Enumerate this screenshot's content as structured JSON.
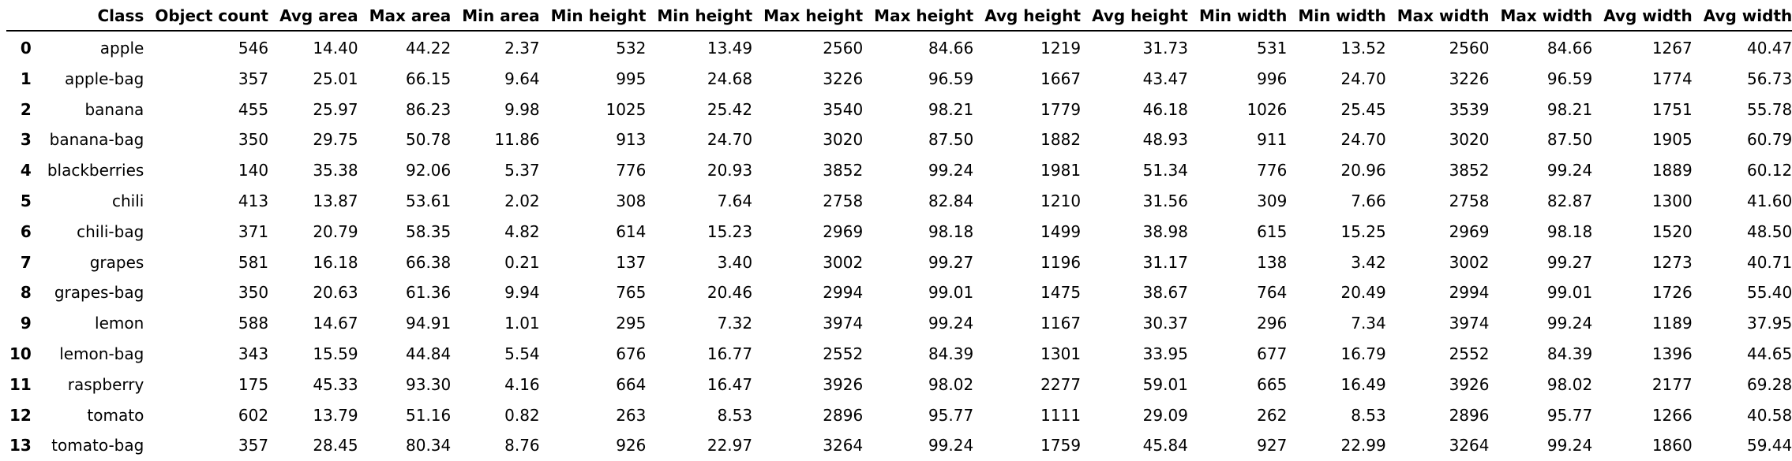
{
  "table": {
    "columns": [
      "Class",
      "Object count",
      "Avg area",
      "Max area",
      "Min area",
      "Min height",
      "Min height",
      "Max height",
      "Max height",
      "Avg height",
      "Avg height",
      "Min width",
      "Min width",
      "Max width",
      "Max width",
      "Avg width",
      "Avg width"
    ],
    "rows": [
      {
        "index": "0",
        "cells": [
          "apple",
          "546",
          "14.40",
          "44.22",
          "2.37",
          "532",
          "13.49",
          "2560",
          "84.66",
          "1219",
          "31.73",
          "531",
          "13.52",
          "2560",
          "84.66",
          "1267",
          "40.47"
        ]
      },
      {
        "index": "1",
        "cells": [
          "apple-bag",
          "357",
          "25.01",
          "66.15",
          "9.64",
          "995",
          "24.68",
          "3226",
          "96.59",
          "1667",
          "43.47",
          "996",
          "24.70",
          "3226",
          "96.59",
          "1774",
          "56.73"
        ]
      },
      {
        "index": "2",
        "cells": [
          "banana",
          "455",
          "25.97",
          "86.23",
          "9.98",
          "1025",
          "25.42",
          "3540",
          "98.21",
          "1779",
          "46.18",
          "1026",
          "25.45",
          "3539",
          "98.21",
          "1751",
          "55.78"
        ]
      },
      {
        "index": "3",
        "cells": [
          "banana-bag",
          "350",
          "29.75",
          "50.78",
          "11.86",
          "913",
          "24.70",
          "3020",
          "87.50",
          "1882",
          "48.93",
          "911",
          "24.70",
          "3020",
          "87.50",
          "1905",
          "60.79"
        ]
      },
      {
        "index": "4",
        "cells": [
          "blackberries",
          "140",
          "35.38",
          "92.06",
          "5.37",
          "776",
          "20.93",
          "3852",
          "99.24",
          "1981",
          "51.34",
          "776",
          "20.96",
          "3852",
          "99.24",
          "1889",
          "60.12"
        ]
      },
      {
        "index": "5",
        "cells": [
          "chili",
          "413",
          "13.87",
          "53.61",
          "2.02",
          "308",
          "7.64",
          "2758",
          "82.84",
          "1210",
          "31.56",
          "309",
          "7.66",
          "2758",
          "82.87",
          "1300",
          "41.60"
        ]
      },
      {
        "index": "6",
        "cells": [
          "chili-bag",
          "371",
          "20.79",
          "58.35",
          "4.82",
          "614",
          "15.23",
          "2969",
          "98.18",
          "1499",
          "38.98",
          "615",
          "15.25",
          "2969",
          "98.18",
          "1520",
          "48.50"
        ]
      },
      {
        "index": "7",
        "cells": [
          "grapes",
          "581",
          "16.18",
          "66.38",
          "0.21",
          "137",
          "3.40",
          "3002",
          "99.27",
          "1196",
          "31.17",
          "138",
          "3.42",
          "3002",
          "99.27",
          "1273",
          "40.71"
        ]
      },
      {
        "index": "8",
        "cells": [
          "grapes-bag",
          "350",
          "20.63",
          "61.36",
          "9.94",
          "765",
          "20.46",
          "2994",
          "99.01",
          "1475",
          "38.67",
          "764",
          "20.49",
          "2994",
          "99.01",
          "1726",
          "55.40"
        ]
      },
      {
        "index": "9",
        "cells": [
          "lemon",
          "588",
          "14.67",
          "94.91",
          "1.01",
          "295",
          "7.32",
          "3974",
          "99.24",
          "1167",
          "30.37",
          "296",
          "7.34",
          "3974",
          "99.24",
          "1189",
          "37.95"
        ]
      },
      {
        "index": "10",
        "cells": [
          "lemon-bag",
          "343",
          "15.59",
          "44.84",
          "5.54",
          "676",
          "16.77",
          "2552",
          "84.39",
          "1301",
          "33.95",
          "677",
          "16.79",
          "2552",
          "84.39",
          "1396",
          "44.65"
        ]
      },
      {
        "index": "11",
        "cells": [
          "raspberry",
          "175",
          "45.33",
          "93.30",
          "4.16",
          "664",
          "16.47",
          "3926",
          "98.02",
          "2277",
          "59.01",
          "665",
          "16.49",
          "3926",
          "98.02",
          "2177",
          "69.28"
        ]
      },
      {
        "index": "12",
        "cells": [
          "tomato",
          "602",
          "13.79",
          "51.16",
          "0.82",
          "263",
          "8.53",
          "2896",
          "95.77",
          "1111",
          "29.09",
          "262",
          "8.53",
          "2896",
          "95.77",
          "1266",
          "40.58"
        ]
      },
      {
        "index": "13",
        "cells": [
          "tomato-bag",
          "357",
          "28.45",
          "80.34",
          "8.76",
          "926",
          "22.97",
          "3264",
          "99.24",
          "1759",
          "45.84",
          "927",
          "22.99",
          "3264",
          "99.24",
          "1860",
          "59.44"
        ]
      }
    ]
  }
}
